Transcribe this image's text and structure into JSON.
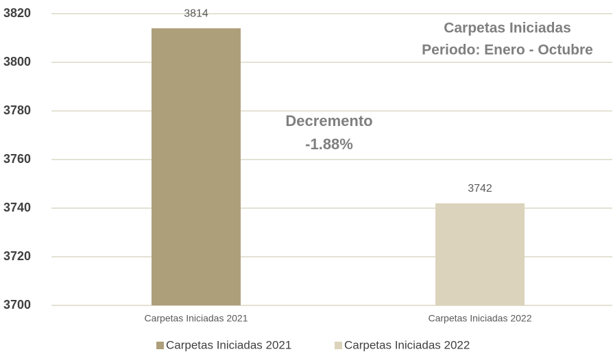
{
  "chart_data": {
    "type": "bar",
    "title": [
      "Carpetas Iniciadas",
      "Periodo: Enero - Octubre"
    ],
    "annotation": [
      "Decremento",
      "-1.88%"
    ],
    "categories": [
      "Carpetas Iniciadas 2021",
      "Carpetas Iniciadas 2022"
    ],
    "series": [
      {
        "name": "Carpetas Iniciadas 2021",
        "color": "#ae9f7b",
        "values": [
          3814,
          null
        ]
      },
      {
        "name": "Carpetas Iniciadas 2022",
        "color": "#dbd3bb",
        "values": [
          null,
          3742
        ]
      }
    ],
    "ylim": [
      3700,
      3820
    ],
    "yticks": [
      3700,
      3720,
      3740,
      3760,
      3780,
      3800,
      3820
    ],
    "grid": true
  }
}
